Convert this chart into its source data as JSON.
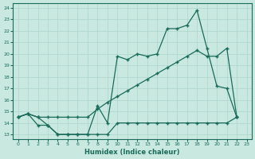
{
  "xlabel": "Humidex (Indice chaleur)",
  "xlim_min": -0.5,
  "xlim_max": 23.5,
  "ylim_min": 12.6,
  "ylim_max": 24.4,
  "xticks": [
    0,
    1,
    2,
    3,
    4,
    5,
    6,
    7,
    8,
    9,
    10,
    11,
    12,
    13,
    14,
    15,
    16,
    17,
    18,
    19,
    20,
    21,
    22,
    23
  ],
  "yticks": [
    13,
    14,
    15,
    16,
    17,
    18,
    19,
    20,
    21,
    22,
    23,
    24
  ],
  "bg_color": "#c8e8e0",
  "grid_color": "#aed4cc",
  "line_color": "#1a6b5a",
  "line_top_x": [
    0,
    1,
    2,
    3,
    4,
    5,
    6,
    7,
    8,
    9,
    10,
    11,
    12,
    13,
    14,
    15,
    16,
    17,
    18,
    19,
    20,
    21,
    22
  ],
  "line_top_y": [
    14.5,
    14.8,
    14.5,
    13.8,
    13.0,
    13.0,
    13.0,
    13.0,
    15.5,
    14.0,
    19.8,
    19.5,
    20.0,
    19.8,
    20.0,
    22.2,
    22.2,
    22.5,
    23.8,
    20.5,
    17.2,
    17.0,
    14.5
  ],
  "line_mid_x": [
    0,
    1,
    2,
    3,
    4,
    5,
    6,
    7,
    8,
    9,
    10,
    11,
    12,
    13,
    14,
    15,
    16,
    17,
    18,
    19,
    20,
    21,
    22
  ],
  "line_mid_y": [
    14.5,
    14.8,
    14.5,
    14.5,
    14.5,
    14.5,
    14.5,
    14.5,
    15.2,
    15.8,
    16.3,
    16.8,
    17.3,
    17.8,
    18.3,
    18.8,
    19.3,
    19.8,
    20.3,
    19.8,
    19.8,
    20.5,
    14.5
  ],
  "line_bot_x": [
    0,
    1,
    2,
    3,
    4,
    5,
    6,
    7,
    8,
    9,
    10,
    11,
    12,
    13,
    14,
    15,
    16,
    17,
    18,
    19,
    20,
    21,
    22
  ],
  "line_bot_y": [
    14.5,
    14.8,
    13.8,
    13.8,
    13.0,
    13.0,
    13.0,
    13.0,
    13.0,
    13.0,
    14.0,
    14.0,
    14.0,
    14.0,
    14.0,
    14.0,
    14.0,
    14.0,
    14.0,
    14.0,
    14.0,
    14.0,
    14.5
  ]
}
